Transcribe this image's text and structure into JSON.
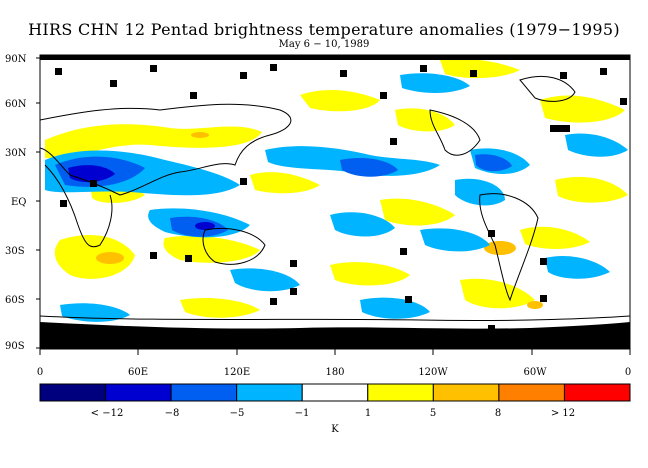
{
  "title": "HIRS CHN 12 Pentad brightness temperature anomalies (1979−1995)",
  "subtitle": "May 6 − 10, 1989",
  "map": {
    "lat_labels": [
      "90N",
      "60N",
      "30N",
      "EQ",
      "30S",
      "60S",
      "90S"
    ],
    "lon_labels": [
      "0",
      "60E",
      "120E",
      "180",
      "120W",
      "60W",
      "0"
    ]
  },
  "legend": {
    "unit": "K",
    "tick_labels": [
      "< −12",
      "−8",
      "−5",
      "−1",
      "1",
      "5",
      "8",
      "> 12"
    ],
    "colors": [
      "#00007f",
      "#0000d0",
      "#005ef0",
      "#00b4ff",
      "#ffffff",
      "#ffff00",
      "#ffc000",
      "#ff8000",
      "#ff0000"
    ]
  }
}
